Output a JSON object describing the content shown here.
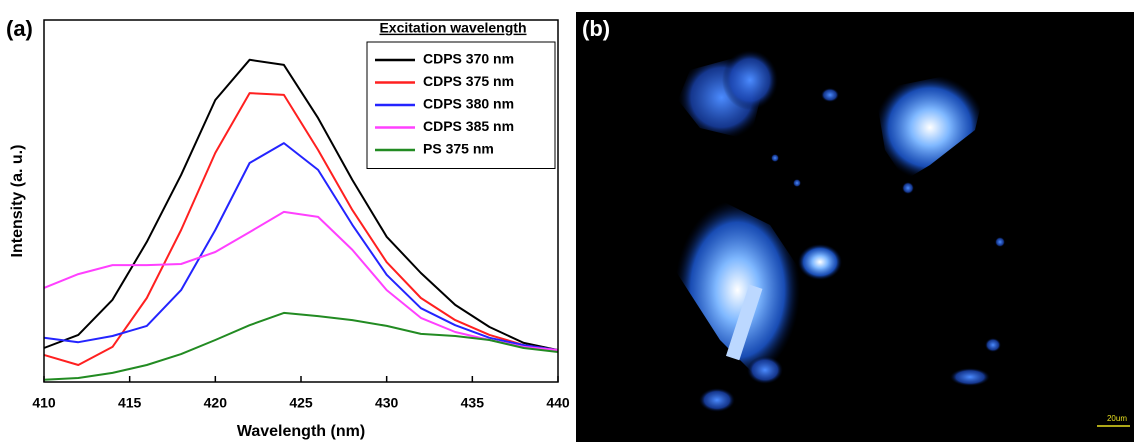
{
  "chart_data": {
    "type": "line",
    "x_label": "Wavelength (nm)",
    "y_label": "Intensity (a. u.)",
    "legend_title": "Excitation wavelength",
    "legend": "upper right",
    "x": [
      410,
      412,
      414,
      416,
      418,
      420,
      422,
      424,
      426,
      428,
      430,
      432,
      434,
      436,
      438,
      440
    ],
    "xlim": [
      410,
      440
    ],
    "xticks": [
      410,
      415,
      420,
      425,
      430,
      435,
      440
    ],
    "ylim": [
      0,
      100
    ],
    "series": [
      {
        "name": "CDPS 370 nm",
        "color": "#000000",
        "values": [
          9.4,
          13.0,
          22.7,
          38.7,
          57.2,
          77.9,
          89.0,
          87.6,
          72.9,
          55.8,
          40.1,
          30.1,
          21.3,
          15.2,
          10.8,
          8.8
        ]
      },
      {
        "name": "CDPS 375 nm",
        "color": "#ff2020",
        "values": [
          7.5,
          4.7,
          9.7,
          23.2,
          42.0,
          63.3,
          79.8,
          79.3,
          64.1,
          47.5,
          33.1,
          23.2,
          17.1,
          13.0,
          10.2,
          8.8
        ]
      },
      {
        "name": "CDPS 380 nm",
        "color": "#2424ff",
        "values": [
          12.2,
          11.0,
          12.7,
          15.5,
          25.4,
          42.0,
          60.5,
          66.0,
          58.6,
          43.4,
          29.6,
          20.4,
          15.7,
          12.2,
          10.2,
          8.8
        ]
      },
      {
        "name": "CDPS 385 nm",
        "color": "#ff40ff",
        "values": [
          26.0,
          29.8,
          32.3,
          32.3,
          32.6,
          35.9,
          41.4,
          47.0,
          45.6,
          36.5,
          25.4,
          17.7,
          13.8,
          11.6,
          9.7,
          8.8
        ]
      },
      {
        "name": "PS 375 nm",
        "color": "#228b22",
        "values": [
          0.6,
          1.1,
          2.5,
          4.7,
          7.7,
          11.6,
          15.7,
          19.1,
          18.2,
          17.1,
          15.5,
          13.3,
          12.7,
          11.6,
          9.4,
          8.3
        ]
      }
    ]
  },
  "panels": {
    "a": "(a)",
    "b": "(b)",
    "scale_bar": "20um"
  }
}
